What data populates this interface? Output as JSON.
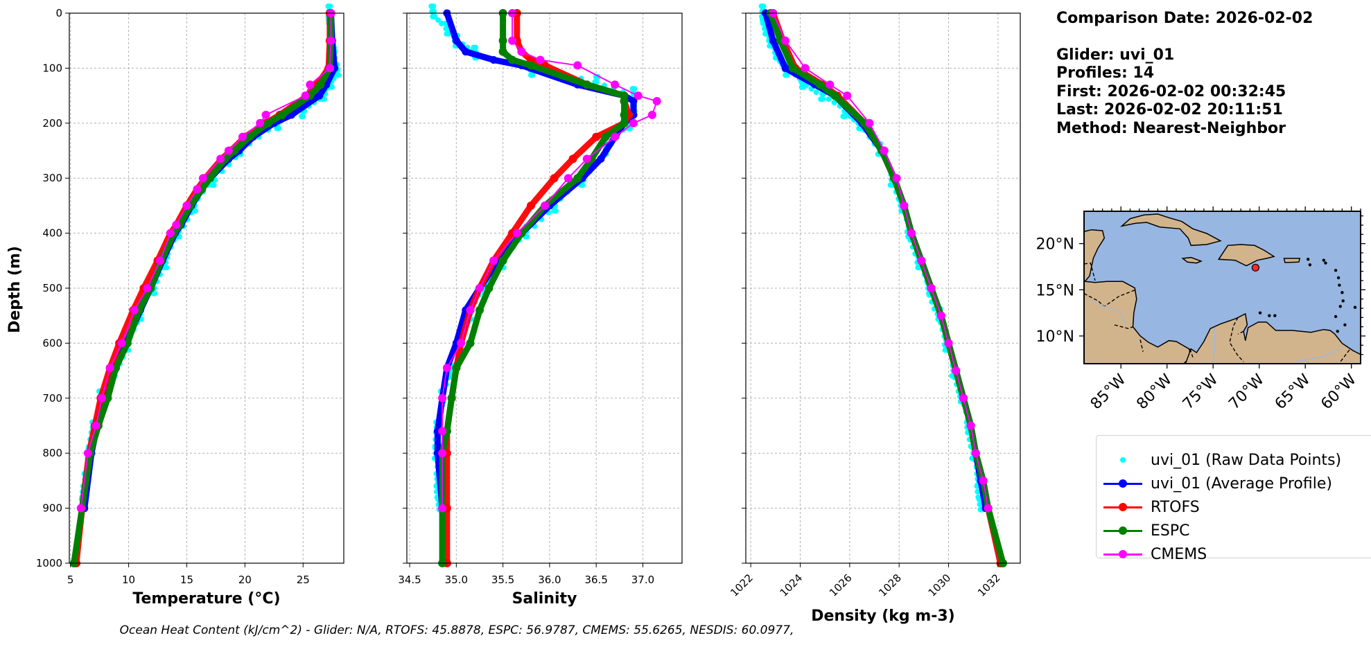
{
  "info": {
    "comparison_date": "Comparison Date: 2026-02-02",
    "glider": "Glider: uvi_01",
    "profiles": "Profiles: 14",
    "first": "First: 2026-02-02 00:32:45",
    "last": "Last: 2026-02-02 20:11:51",
    "method": "Method: Nearest-Neighbor"
  },
  "footer": "Ocean Heat Content (kJ/cm^2) - Glider: N/A,  RTOFS: 45.8878,  ESPC: 56.9787,  CMEMS: 55.6265,  NESDIS: 60.0977,",
  "colors": {
    "raw": "#00ffff",
    "glider": "#0000ff",
    "rtofs": "#ff0000",
    "espc": "#008000",
    "cmems": "#ff00ff",
    "ocean": "#97b6e1",
    "land": "#d2b48c",
    "grid": "#b0b0b0"
  },
  "legend": [
    {
      "label": "uvi_01 (Raw Data Points)",
      "series": "raw"
    },
    {
      "label": "uvi_01 (Average Profile)",
      "series": "glider"
    },
    {
      "label": "RTOFS",
      "series": "rtofs"
    },
    {
      "label": "ESPC",
      "series": "espc"
    },
    {
      "label": "CMEMS",
      "series": "cmems"
    }
  ],
  "map": {
    "lat_ticks": [
      "10°N",
      "15°N",
      "20°N"
    ],
    "lon_ticks": [
      "85°W",
      "80°W",
      "75°W",
      "70°W",
      "65°W",
      "60°W"
    ],
    "extent": {
      "lon": [
        -89,
        -59
      ],
      "lat": [
        7,
        23.5
      ]
    },
    "glider_location": {
      "lon": -70.4,
      "lat": 17.4
    }
  },
  "chart_data": [
    {
      "type": "line",
      "xlabel": "Temperature (°C)",
      "ylabel": "Depth (m)",
      "xlim": [
        4.9,
        28.5
      ],
      "ylim": [
        1000,
        0
      ],
      "xticks": [
        5,
        10,
        15,
        20,
        25
      ],
      "yticks": [
        0,
        100,
        200,
        300,
        400,
        500,
        600,
        700,
        800,
        900,
        1000
      ],
      "grid": true,
      "depth": [
        0,
        50,
        100,
        130,
        150,
        185,
        200,
        225,
        250,
        265,
        300,
        320,
        350,
        385,
        400,
        450,
        500,
        540,
        600,
        645,
        700,
        750,
        800,
        900,
        1000
      ],
      "series": [
        {
          "name": "uvi_01 (Average Profile)",
          "key": "glider",
          "values": [
            27.4,
            27.5,
            27.7,
            27.0,
            26.4,
            24.0,
            22.5,
            20.7,
            19.5,
            18.6,
            17.0,
            16.3,
            15.4,
            14.5,
            14.0,
            12.9,
            11.9,
            11.0,
            9.8,
            8.9,
            7.9,
            7.3,
            6.8,
            6.2,
            null
          ]
        },
        {
          "name": "RTOFS",
          "key": "rtofs",
          "values": [
            27.3,
            27.3,
            27.2,
            26.2,
            25.4,
            23.0,
            21.8,
            20.0,
            18.8,
            18.0,
            16.6,
            15.9,
            15.0,
            14.1,
            13.6,
            12.5,
            11.3,
            10.4,
            9.2,
            8.4,
            7.6,
            7.1,
            6.6,
            6.0,
            5.5
          ]
        },
        {
          "name": "ESPC",
          "key": "espc",
          "values": [
            27.4,
            27.4,
            27.3,
            26.5,
            25.6,
            23.2,
            22.0,
            20.4,
            19.1,
            18.3,
            17.0,
            16.3,
            15.3,
            14.4,
            13.9,
            12.8,
            11.9,
            10.9,
            9.9,
            8.9,
            8.2,
            7.4,
            6.7,
            6.0,
            5.3
          ]
        },
        {
          "name": "CMEMS",
          "key": "cmems",
          "values": [
            27.4,
            27.4,
            27.3,
            25.6,
            25.2,
            21.8,
            21.3,
            19.8,
            18.6,
            17.9,
            16.4,
            15.9,
            15.0,
            14.1,
            13.6,
            12.7,
            11.6,
            10.5,
            9.4,
            8.4,
            7.7,
            7.2,
            6.5,
            5.9,
            null
          ]
        }
      ],
      "raw_points": {
        "key": "raw",
        "depth": [
          0,
          25,
          50,
          75,
          100,
          125,
          150,
          175,
          200,
          250,
          300,
          350,
          400,
          450,
          500,
          550,
          600,
          650,
          700,
          750,
          800,
          850,
          890
        ],
        "values": [
          27.3,
          27.4,
          27.4,
          27.6,
          27.9,
          27.4,
          26.8,
          25.0,
          22.8,
          19.6,
          17.3,
          15.6,
          14.3,
          13.2,
          12.1,
          11.0,
          9.9,
          8.8,
          7.6,
          7.0,
          6.6,
          6.3,
          6.1
        ]
      }
    },
    {
      "type": "line",
      "xlabel": "Salinity",
      "xlim": [
        34.47,
        37.42
      ],
      "ylim": [
        1000,
        0
      ],
      "xticks": [
        34.5,
        35.0,
        35.5,
        36.0,
        36.5,
        37.0
      ],
      "yticks": [
        0,
        100,
        200,
        300,
        400,
        500,
        600,
        700,
        800,
        900,
        1000
      ],
      "grid": true,
      "depth": [
        0,
        50,
        70,
        85,
        95,
        130,
        150,
        160,
        185,
        200,
        225,
        265,
        300,
        350,
        400,
        450,
        500,
        540,
        600,
        645,
        700,
        760,
        800,
        900,
        1000
      ],
      "series": [
        {
          "name": "uvi_01 (Average Profile)",
          "key": "glider",
          "values": [
            34.9,
            35.0,
            35.1,
            35.4,
            35.7,
            36.3,
            36.8,
            36.9,
            36.9,
            36.8,
            36.7,
            36.55,
            36.35,
            36.0,
            35.7,
            35.45,
            35.25,
            35.1,
            35.0,
            34.9,
            34.85,
            34.8,
            34.8,
            34.85,
            null
          ]
        },
        {
          "name": "RTOFS",
          "key": "rtofs",
          "values": [
            35.65,
            35.65,
            35.7,
            35.8,
            35.95,
            36.4,
            36.8,
            36.8,
            36.85,
            36.8,
            36.5,
            36.25,
            36.05,
            35.8,
            35.6,
            35.4,
            35.25,
            35.15,
            35.05,
            35.0,
            34.95,
            34.9,
            34.9,
            34.9,
            34.9
          ]
        },
        {
          "name": "ESPC",
          "key": "espc",
          "values": [
            35.5,
            35.5,
            35.5,
            35.6,
            35.8,
            36.4,
            36.8,
            36.8,
            36.8,
            36.8,
            36.6,
            36.45,
            36.3,
            35.95,
            35.7,
            35.5,
            35.35,
            35.25,
            35.15,
            35.0,
            34.95,
            34.9,
            34.85,
            34.85,
            34.85
          ]
        },
        {
          "name": "CMEMS",
          "key": "cmems",
          "values": [
            35.6,
            35.6,
            35.7,
            35.9,
            36.3,
            36.7,
            36.95,
            37.15,
            37.1,
            36.9,
            36.7,
            36.4,
            36.2,
            35.95,
            35.65,
            35.4,
            35.25,
            35.15,
            35.05,
            34.9,
            34.85,
            34.85,
            34.85,
            34.85,
            null
          ]
        }
      ],
      "raw_points": {
        "key": "raw",
        "depth": [
          0,
          25,
          50,
          75,
          100,
          125,
          150,
          175,
          200,
          250,
          300,
          350,
          400,
          450,
          500,
          550,
          600,
          650,
          700,
          750,
          800,
          850,
          890
        ],
        "values": [
          34.75,
          34.9,
          35.0,
          35.2,
          35.8,
          36.5,
          36.9,
          36.9,
          36.85,
          36.6,
          36.35,
          36.05,
          35.75,
          35.5,
          35.3,
          35.15,
          35.05,
          34.95,
          34.85,
          34.8,
          34.78,
          34.8,
          34.82
        ]
      }
    },
    {
      "type": "line",
      "xlabel": "Density (kg m-3)",
      "xlim": [
        1021.8,
        1032.9
      ],
      "ylim": [
        1000,
        0
      ],
      "xticks": [
        1022,
        1024,
        1026,
        1028,
        1030,
        1032
      ],
      "yticks": [
        0,
        100,
        200,
        300,
        400,
        500,
        600,
        700,
        800,
        900,
        1000
      ],
      "grid": true,
      "depth": [
        0,
        50,
        100,
        130,
        150,
        200,
        250,
        300,
        350,
        400,
        450,
        500,
        550,
        600,
        650,
        700,
        750,
        800,
        850,
        900,
        1000
      ],
      "series": [
        {
          "name": "uvi_01 (Average Profile)",
          "key": "glider",
          "values": [
            1022.6,
            1022.9,
            1023.4,
            1024.6,
            1025.4,
            1026.5,
            1027.3,
            1027.8,
            1028.2,
            1028.5,
            1028.9,
            1029.3,
            1029.7,
            1030.0,
            1030.3,
            1030.6,
            1030.9,
            1031.1,
            1031.3,
            1031.5,
            null
          ]
        },
        {
          "name": "RTOFS",
          "key": "rtofs",
          "values": [
            1022.9,
            1023.3,
            1023.8,
            1024.9,
            1025.5,
            1026.6,
            1027.3,
            1027.8,
            1028.2,
            1028.5,
            1028.9,
            1029.3,
            1029.7,
            1030.0,
            1030.3,
            1030.6,
            1030.9,
            1031.1,
            1031.4,
            1031.6,
            1032.1
          ]
        },
        {
          "name": "ESPC",
          "key": "espc",
          "values": [
            1022.8,
            1023.2,
            1023.7,
            1024.8,
            1025.4,
            1026.6,
            1027.3,
            1027.8,
            1028.2,
            1028.5,
            1028.9,
            1029.3,
            1029.7,
            1030.0,
            1030.3,
            1030.6,
            1030.9,
            1031.1,
            1031.4,
            1031.6,
            1032.2
          ]
        },
        {
          "name": "CMEMS",
          "key": "cmems",
          "values": [
            1022.9,
            1023.4,
            1024.2,
            1025.2,
            1025.9,
            1026.8,
            1027.4,
            1027.9,
            1028.2,
            1028.5,
            1028.9,
            1029.3,
            1029.7,
            1030.0,
            1030.3,
            1030.6,
            1030.9,
            1031.1,
            1031.4,
            1031.6,
            null
          ]
        }
      ],
      "raw_points": {
        "key": "raw",
        "depth": [
          0,
          25,
          50,
          75,
          100,
          125,
          150,
          175,
          200,
          250,
          300,
          350,
          400,
          450,
          500,
          550,
          600,
          650,
          700,
          750,
          800,
          850,
          890
        ],
        "values": [
          1022.5,
          1022.6,
          1022.8,
          1023.0,
          1023.4,
          1024.1,
          1024.9,
          1025.8,
          1026.4,
          1027.2,
          1027.7,
          1028.1,
          1028.4,
          1028.8,
          1029.2,
          1029.6,
          1029.9,
          1030.2,
          1030.5,
          1030.8,
          1031.0,
          1031.2,
          1031.3
        ]
      }
    }
  ]
}
